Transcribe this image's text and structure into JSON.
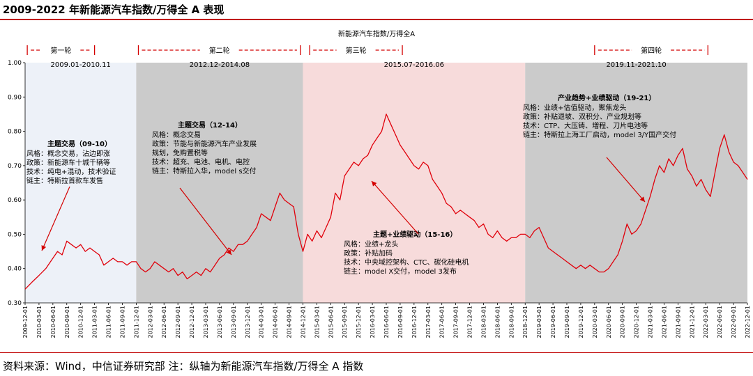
{
  "header": {
    "title": "2009-2022 年新能源汽车指数/万得全 A 表现"
  },
  "footer": {
    "source": "资料来源：Wind，中信证券研究部   注：纵轴为新能源汽车指数/万得全 A 指数"
  },
  "chart_data": {
    "type": "line",
    "title": "新能源汽车指数/万得全A",
    "ylim": [
      0.3,
      1.0
    ],
    "yticks": [
      "0.30",
      "0.40",
      "0.50",
      "0.60",
      "0.70",
      "0.80",
      "0.90",
      "1.00"
    ],
    "xlim": [
      "2009-12-01",
      "2022-12-01"
    ],
    "xticks": [
      "2009-12-01",
      "2010-03-01",
      "2010-06-01",
      "2010-09-01",
      "2010-12-01",
      "2011-03-01",
      "2011-06-01",
      "2011-09-01",
      "2011-12-01",
      "2012-03-01",
      "2012-06-01",
      "2012-09-01",
      "2012-12-01",
      "2013-03-01",
      "2013-06-01",
      "2013-09-01",
      "2013-12-01",
      "2014-03-01",
      "2014-06-01",
      "2014-09-01",
      "2014-12-01",
      "2015-03-01",
      "2015-06-01",
      "2015-09-01",
      "2015-12-01",
      "2016-03-01",
      "2016-06-01",
      "2016-09-01",
      "2016-12-01",
      "2017-03-01",
      "2017-06-01",
      "2017-09-01",
      "2017-12-01",
      "2018-03-01",
      "2018-06-01",
      "2018-09-01",
      "2018-12-01",
      "2019-03-01",
      "2019-06-01",
      "2019-09-01",
      "2019-12-01",
      "2020-03-01",
      "2020-06-01",
      "2020-09-01",
      "2020-12-01",
      "2021-03-01",
      "2021-06-01",
      "2021-09-01",
      "2021-12-01",
      "2022-03-01",
      "2022-06-01",
      "2022-09-01",
      "2022-12-01"
    ],
    "grid": false,
    "series": [
      {
        "color": "#e0000b",
        "points": [
          [
            "2009-12-01",
            0.34
          ],
          [
            "2010-01-15",
            0.36
          ],
          [
            "2010-03-01",
            0.38
          ],
          [
            "2010-04-15",
            0.4
          ],
          [
            "2010-06-01",
            0.43
          ],
          [
            "2010-07-01",
            0.45
          ],
          [
            "2010-08-01",
            0.44
          ],
          [
            "2010-09-01",
            0.48
          ],
          [
            "2010-10-01",
            0.47
          ],
          [
            "2010-11-01",
            0.46
          ],
          [
            "2010-12-01",
            0.47
          ],
          [
            "2011-01-01",
            0.45
          ],
          [
            "2011-02-01",
            0.46
          ],
          [
            "2011-03-01",
            0.45
          ],
          [
            "2011-04-01",
            0.44
          ],
          [
            "2011-05-01",
            0.41
          ],
          [
            "2011-06-01",
            0.42
          ],
          [
            "2011-07-01",
            0.43
          ],
          [
            "2011-08-01",
            0.42
          ],
          [
            "2011-09-01",
            0.42
          ],
          [
            "2011-10-01",
            0.41
          ],
          [
            "2011-11-01",
            0.42
          ],
          [
            "2011-12-01",
            0.42
          ],
          [
            "2012-01-01",
            0.4
          ],
          [
            "2012-02-01",
            0.39
          ],
          [
            "2012-03-01",
            0.4
          ],
          [
            "2012-04-01",
            0.42
          ],
          [
            "2012-05-01",
            0.41
          ],
          [
            "2012-06-01",
            0.4
          ],
          [
            "2012-07-01",
            0.39
          ],
          [
            "2012-08-01",
            0.4
          ],
          [
            "2012-09-01",
            0.38
          ],
          [
            "2012-10-01",
            0.39
          ],
          [
            "2012-11-01",
            0.37
          ],
          [
            "2012-12-01",
            0.38
          ],
          [
            "2013-01-01",
            0.39
          ],
          [
            "2013-02-01",
            0.38
          ],
          [
            "2013-03-01",
            0.4
          ],
          [
            "2013-04-01",
            0.39
          ],
          [
            "2013-05-01",
            0.41
          ],
          [
            "2013-06-01",
            0.43
          ],
          [
            "2013-07-01",
            0.44
          ],
          [
            "2013-08-01",
            0.46
          ],
          [
            "2013-09-01",
            0.45
          ],
          [
            "2013-10-01",
            0.47
          ],
          [
            "2013-11-01",
            0.47
          ],
          [
            "2013-12-01",
            0.48
          ],
          [
            "2014-01-01",
            0.5
          ],
          [
            "2014-02-01",
            0.52
          ],
          [
            "2014-03-01",
            0.56
          ],
          [
            "2014-04-01",
            0.55
          ],
          [
            "2014-05-01",
            0.54
          ],
          [
            "2014-06-01",
            0.58
          ],
          [
            "2014-07-01",
            0.62
          ],
          [
            "2014-08-01",
            0.6
          ],
          [
            "2014-09-01",
            0.59
          ],
          [
            "2014-10-01",
            0.58
          ],
          [
            "2014-11-01",
            0.5
          ],
          [
            "2014-12-01",
            0.45
          ],
          [
            "2015-01-01",
            0.5
          ],
          [
            "2015-02-01",
            0.48
          ],
          [
            "2015-03-01",
            0.51
          ],
          [
            "2015-04-01",
            0.49
          ],
          [
            "2015-05-01",
            0.52
          ],
          [
            "2015-06-01",
            0.55
          ],
          [
            "2015-07-01",
            0.62
          ],
          [
            "2015-08-01",
            0.6
          ],
          [
            "2015-09-01",
            0.67
          ],
          [
            "2015-10-01",
            0.69
          ],
          [
            "2015-11-01",
            0.71
          ],
          [
            "2015-12-01",
            0.7
          ],
          [
            "2016-01-01",
            0.72
          ],
          [
            "2016-02-01",
            0.73
          ],
          [
            "2016-03-01",
            0.76
          ],
          [
            "2016-04-01",
            0.78
          ],
          [
            "2016-05-01",
            0.8
          ],
          [
            "2016-06-01",
            0.85
          ],
          [
            "2016-07-01",
            0.82
          ],
          [
            "2016-08-01",
            0.79
          ],
          [
            "2016-09-01",
            0.76
          ],
          [
            "2016-10-01",
            0.74
          ],
          [
            "2016-11-01",
            0.72
          ],
          [
            "2016-12-01",
            0.7
          ],
          [
            "2017-01-01",
            0.69
          ],
          [
            "2017-02-01",
            0.71
          ],
          [
            "2017-03-01",
            0.7
          ],
          [
            "2017-04-01",
            0.66
          ],
          [
            "2017-05-01",
            0.64
          ],
          [
            "2017-06-01",
            0.62
          ],
          [
            "2017-07-01",
            0.59
          ],
          [
            "2017-08-01",
            0.58
          ],
          [
            "2017-09-01",
            0.56
          ],
          [
            "2017-10-01",
            0.57
          ],
          [
            "2017-11-01",
            0.56
          ],
          [
            "2017-12-01",
            0.55
          ],
          [
            "2018-01-01",
            0.54
          ],
          [
            "2018-02-01",
            0.52
          ],
          [
            "2018-03-01",
            0.53
          ],
          [
            "2018-04-01",
            0.5
          ],
          [
            "2018-05-01",
            0.49
          ],
          [
            "2018-06-01",
            0.51
          ],
          [
            "2018-07-01",
            0.49
          ],
          [
            "2018-08-01",
            0.48
          ],
          [
            "2018-09-01",
            0.49
          ],
          [
            "2018-10-01",
            0.49
          ],
          [
            "2018-11-01",
            0.5
          ],
          [
            "2018-12-01",
            0.5
          ],
          [
            "2019-01-01",
            0.49
          ],
          [
            "2019-02-01",
            0.51
          ],
          [
            "2019-03-01",
            0.52
          ],
          [
            "2019-04-01",
            0.49
          ],
          [
            "2019-05-01",
            0.46
          ],
          [
            "2019-06-01",
            0.45
          ],
          [
            "2019-07-01",
            0.44
          ],
          [
            "2019-08-01",
            0.43
          ],
          [
            "2019-09-01",
            0.42
          ],
          [
            "2019-10-01",
            0.41
          ],
          [
            "2019-11-01",
            0.4
          ],
          [
            "2019-12-01",
            0.41
          ],
          [
            "2020-01-01",
            0.4
          ],
          [
            "2020-02-01",
            0.41
          ],
          [
            "2020-03-01",
            0.4
          ],
          [
            "2020-04-01",
            0.39
          ],
          [
            "2020-05-01",
            0.39
          ],
          [
            "2020-06-01",
            0.4
          ],
          [
            "2020-07-01",
            0.42
          ],
          [
            "2020-08-01",
            0.44
          ],
          [
            "2020-09-01",
            0.48
          ],
          [
            "2020-10-01",
            0.53
          ],
          [
            "2020-11-01",
            0.5
          ],
          [
            "2020-12-01",
            0.51
          ],
          [
            "2021-01-01",
            0.53
          ],
          [
            "2021-02-01",
            0.57
          ],
          [
            "2021-03-01",
            0.61
          ],
          [
            "2021-04-01",
            0.66
          ],
          [
            "2021-05-01",
            0.7
          ],
          [
            "2021-06-01",
            0.68
          ],
          [
            "2021-07-01",
            0.72
          ],
          [
            "2021-08-01",
            0.7
          ],
          [
            "2021-09-01",
            0.73
          ],
          [
            "2021-10-01",
            0.75
          ],
          [
            "2021-11-01",
            0.69
          ],
          [
            "2021-12-01",
            0.67
          ],
          [
            "2022-01-01",
            0.64
          ],
          [
            "2022-02-01",
            0.66
          ],
          [
            "2022-03-01",
            0.63
          ],
          [
            "2022-04-01",
            0.61
          ],
          [
            "2022-05-01",
            0.68
          ],
          [
            "2022-06-01",
            0.75
          ],
          [
            "2022-07-01",
            0.79
          ],
          [
            "2022-08-01",
            0.74
          ],
          [
            "2022-09-01",
            0.71
          ],
          [
            "2022-10-01",
            0.7
          ],
          [
            "2022-11-01",
            0.68
          ],
          [
            "2022-12-01",
            0.66
          ]
        ]
      }
    ],
    "regions": [
      {
        "start": "2009-12-01",
        "end": "2011-12-01",
        "color": "#edf1f8",
        "label": "2009.01-2010.11",
        "round": "第一轮"
      },
      {
        "start": "2011-12-01",
        "end": "2014-12-01",
        "color": "#cbcbcb",
        "label": "2012.12-2014.08",
        "round": "第二轮"
      },
      {
        "start": "2014-12-01",
        "end": "2018-12-01",
        "color": "#f7dbdb",
        "label": "2015.07-2016.06",
        "round": "第三轮"
      },
      {
        "start": "2018-12-01",
        "end": "2022-12-01",
        "color": "#cbcbcb",
        "label": "2019.11-2021.10",
        "round": "第四轮"
      }
    ],
    "annotations": [
      {
        "title": "主题交易（09-10）",
        "lines": [
          "风格：概念交易，沾边即涨",
          "政策：新能源车十城千辆等",
          "技术：纯电+混动，技术验证",
          "链主：特斯拉首款车发售"
        ]
      },
      {
        "title": "主题交易（12-14）",
        "lines": [
          "风格：概念交易",
          "政策：节能与新能源汽车产业发展",
          "规划，免购置税等",
          "技术：超充、电池、电机、电控",
          "链主：特斯拉入华，model s交付"
        ]
      },
      {
        "title": "主题+业绩驱动（15-16）",
        "lines": [
          "风格：业绩+龙头",
          "政策：补贴加码",
          "技术：中央域控架构、CTC、碳化硅电机",
          "链主：model X交付，model 3发布"
        ]
      },
      {
        "title": "产业趋势+业绩驱动（19-21）",
        "lines": [
          "风格：业绩+估值驱动，聚焦龙头",
          "政策：补贴退坡、双积分、产业规划等",
          "技术：CTP、大压铸、増程、刀片电池等",
          "链主：特斯拉上海工厂启动，model 3/Y国产交付"
        ]
      }
    ]
  }
}
